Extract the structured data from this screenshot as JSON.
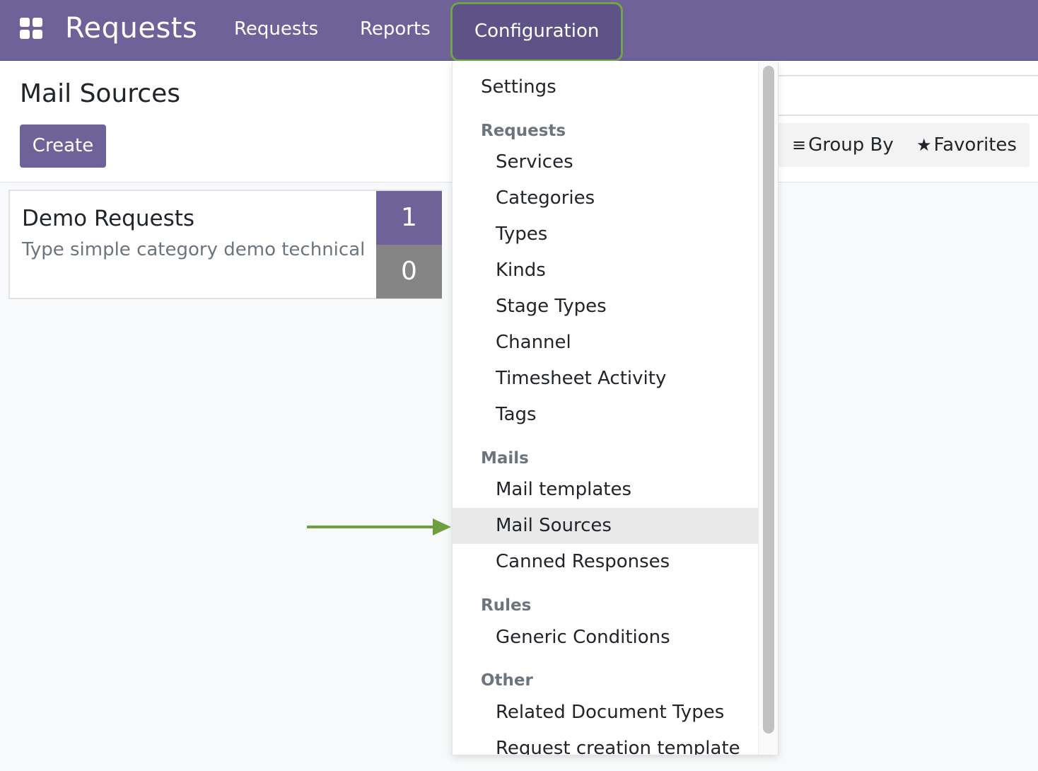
{
  "navbar": {
    "apps_icon": "grid-apps-icon",
    "brand": "Requests",
    "items": [
      {
        "label": "Requests"
      },
      {
        "label": "Reports"
      },
      {
        "label": "Configuration"
      }
    ]
  },
  "control_panel": {
    "title": "Mail Sources",
    "create_label": "Create",
    "group_by_label": "Group By",
    "group_by_icon": "list-bars-icon",
    "favorites_label": "Favorites",
    "favorites_icon": "star-icon"
  },
  "card": {
    "title": "Demo Requests",
    "subtitle": "Type simple category demo technical",
    "count_open": "1",
    "count_closed": "0"
  },
  "dropdown": {
    "settings": "Settings",
    "sections": [
      {
        "header": "Requests",
        "items": [
          "Services",
          "Categories",
          "Types",
          "Kinds",
          "Stage Types",
          "Channel",
          "Timesheet Activity",
          "Tags"
        ]
      },
      {
        "header": "Mails",
        "items": [
          "Mail templates",
          "Mail Sources",
          "Canned Responses"
        ]
      },
      {
        "header": "Rules",
        "items": [
          "Generic Conditions"
        ]
      },
      {
        "header": "Other",
        "items": [
          "Related Document Types",
          "Request creation template"
        ]
      }
    ],
    "active_item": "Mail Sources"
  },
  "colors": {
    "brand": "#6f6298",
    "highlight_border": "#72a346",
    "arrow": "#6f9e3e"
  }
}
